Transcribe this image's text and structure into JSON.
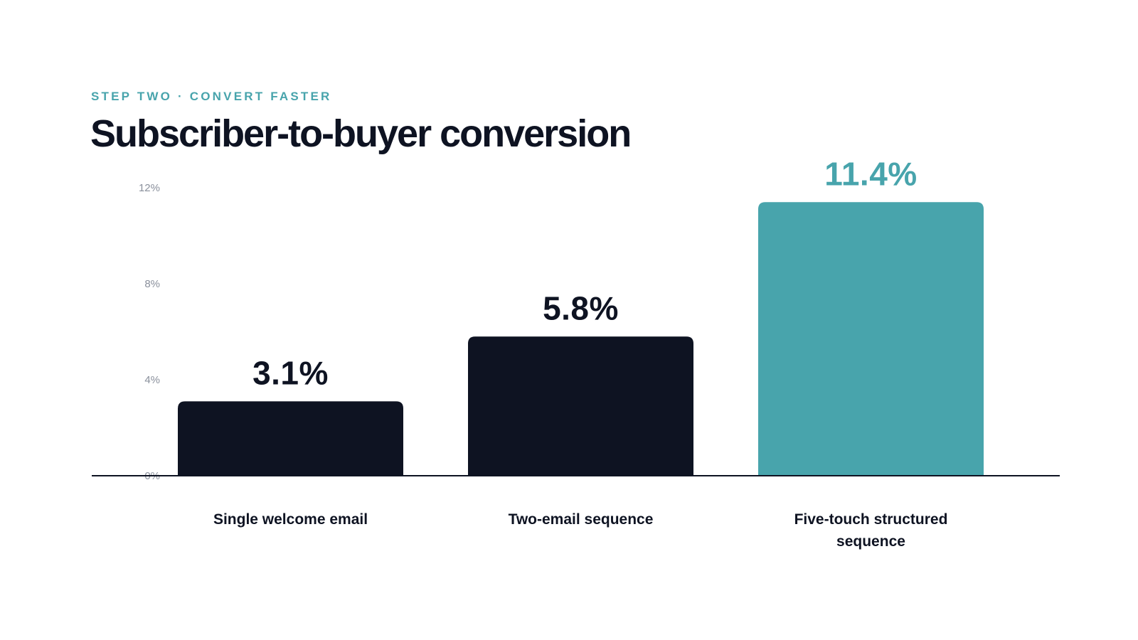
{
  "header": {
    "eyebrow": "STEP TWO · CONVERT FASTER",
    "title": "Subscriber-to-buyer conversion"
  },
  "colors": {
    "text": "#0e1322",
    "accent": "#48a4ac",
    "bar_default": "#0e1322",
    "axis_tick": "#8a909c",
    "axis_line": "#0e1322"
  },
  "chart_data": {
    "type": "bar",
    "title": "Subscriber-to-buyer conversion",
    "xlabel": "",
    "ylabel": "",
    "categories": [
      "Single welcome email",
      "Two-email sequence",
      "Five-touch structured sequence"
    ],
    "values": [
      3.1,
      5.8,
      11.4
    ],
    "value_labels": [
      "3.1%",
      "5.8%",
      "11.4%"
    ],
    "highlight_index": 2,
    "ylim": [
      0,
      12
    ],
    "yticks": [
      0,
      4,
      8,
      12
    ],
    "ytick_labels": [
      "0%",
      "4%",
      "8%",
      "12%"
    ],
    "grid": false,
    "legend": "none"
  }
}
